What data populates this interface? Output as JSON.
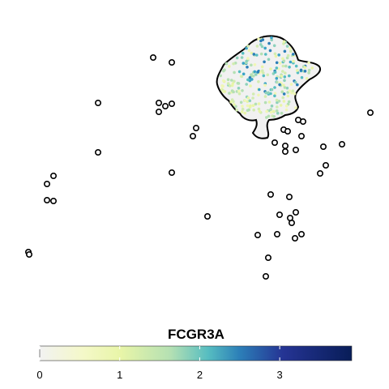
{
  "chart_data": {
    "type": "scatter",
    "title": "",
    "xlabel": "",
    "ylabel": "",
    "grid": false,
    "legend": {
      "title": "FCGR3A",
      "placement": "bottom",
      "type": "colorbar",
      "range": [
        0,
        3.9
      ],
      "ticks": [
        "0",
        "1",
        "2",
        "3"
      ],
      "tick_values": [
        0,
        1,
        2,
        3
      ]
    },
    "colors": {
      "scale": [
        "#f2f2f2",
        "#f0f7b5",
        "#b4e0b3",
        "#56bdc1",
        "#2c7fb8",
        "#253494",
        "#081d58"
      ],
      "outline": "#000000",
      "low_point": "#efefef"
    },
    "main_cluster": {
      "x": [
        300,
        340
      ],
      "y": [
        95,
        90
      ],
      "note_color_range": [
        0,
        3.9
      ]
    },
    "outlier_points": [
      [
        189,
        71
      ],
      [
        212,
        77
      ],
      [
        121,
        127
      ],
      [
        196,
        127
      ],
      [
        204,
        131
      ],
      [
        212,
        128
      ],
      [
        196,
        138
      ],
      [
        242,
        158
      ],
      [
        238,
        168
      ],
      [
        121,
        188
      ],
      [
        212,
        213
      ],
      [
        66,
        217
      ],
      [
        58,
        227
      ],
      [
        58,
        247
      ],
      [
        66,
        248
      ],
      [
        35,
        311
      ],
      [
        36,
        314
      ],
      [
        256,
        267
      ],
      [
        334,
        240
      ],
      [
        357,
        243
      ],
      [
        365,
        262
      ],
      [
        345,
        265
      ],
      [
        360,
        275
      ],
      [
        358,
        269
      ],
      [
        318,
        290
      ],
      [
        342,
        289
      ],
      [
        372,
        289
      ],
      [
        364,
        294
      ],
      [
        331,
        318
      ],
      [
        328,
        341
      ],
      [
        339,
        176
      ],
      [
        352,
        180
      ],
      [
        352,
        187
      ],
      [
        372,
        168
      ],
      [
        365,
        185
      ],
      [
        350,
        160
      ],
      [
        355,
        162
      ],
      [
        368,
        148
      ],
      [
        374,
        150
      ],
      [
        399,
        181
      ],
      [
        422,
        178
      ],
      [
        457,
        139
      ],
      [
        402,
        204
      ],
      [
        395,
        214
      ]
    ]
  }
}
